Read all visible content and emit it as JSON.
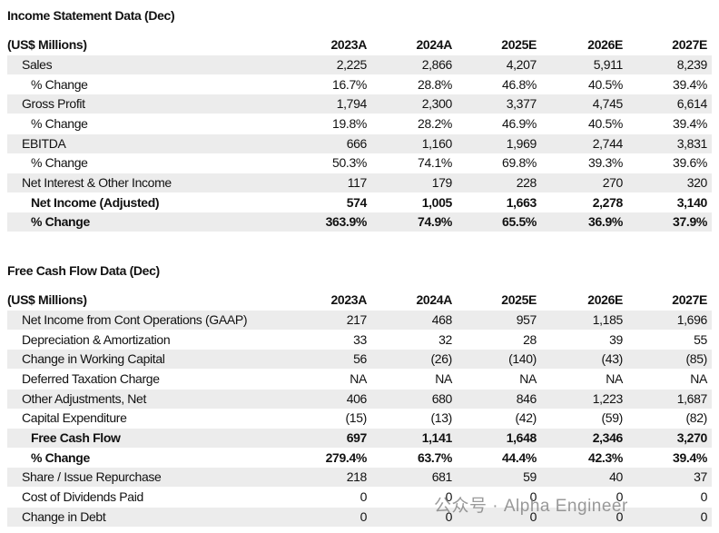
{
  "sections": [
    {
      "title": "Income Statement Data (Dec)",
      "header": {
        "label": "(US$ Millions)",
        "columns": [
          "2023A",
          "2024A",
          "2025E",
          "2026E",
          "2027E"
        ]
      },
      "rows": [
        {
          "label": "Sales",
          "values": [
            "2,225",
            "2,866",
            "4,207",
            "5,911",
            "8,239"
          ]
        },
        {
          "label": "% Change",
          "values": [
            "16.7%",
            "28.8%",
            "46.8%",
            "40.5%",
            "39.4%"
          ],
          "indent": true
        },
        {
          "label": "Gross Profit",
          "values": [
            "1,794",
            "2,300",
            "3,377",
            "4,745",
            "6,614"
          ]
        },
        {
          "label": "% Change",
          "values": [
            "19.8%",
            "28.2%",
            "46.9%",
            "40.5%",
            "39.4%"
          ],
          "indent": true
        },
        {
          "label": "EBITDA",
          "values": [
            "666",
            "1,160",
            "1,969",
            "2,744",
            "3,831"
          ]
        },
        {
          "label": "% Change",
          "values": [
            "50.3%",
            "74.1%",
            "69.8%",
            "39.3%",
            "39.6%"
          ],
          "indent": true
        },
        {
          "label": "Net Interest & Other Income",
          "values": [
            "117",
            "179",
            "228",
            "270",
            "320"
          ]
        },
        {
          "label": "Net Income (Adjusted)",
          "values": [
            "574",
            "1,005",
            "1,663",
            "2,278",
            "3,140"
          ],
          "indent": true,
          "bold": true
        },
        {
          "label": "% Change",
          "values": [
            "363.9%",
            "74.9%",
            "65.5%",
            "36.9%",
            "37.9%"
          ],
          "indent": true,
          "bold": true
        }
      ]
    },
    {
      "title": "Free Cash Flow Data (Dec)",
      "header": {
        "label": "(US$ Millions)",
        "columns": [
          "2023A",
          "2024A",
          "2025E",
          "2026E",
          "2027E"
        ]
      },
      "rows": [
        {
          "label": "Net Income from Cont Operations (GAAP)",
          "values": [
            "217",
            "468",
            "957",
            "1,185",
            "1,696"
          ]
        },
        {
          "label": "Depreciation & Amortization",
          "values": [
            "33",
            "32",
            "28",
            "39",
            "55"
          ]
        },
        {
          "label": "Change in Working Capital",
          "values": [
            "56",
            "(26)",
            "(140)",
            "(43)",
            "(85)"
          ]
        },
        {
          "label": "Deferred Taxation Charge",
          "values": [
            "NA",
            "NA",
            "NA",
            "NA",
            "NA"
          ]
        },
        {
          "label": "Other Adjustments, Net",
          "values": [
            "406",
            "680",
            "846",
            "1,223",
            "1,687"
          ]
        },
        {
          "label": "Capital Expenditure",
          "values": [
            "(15)",
            "(13)",
            "(42)",
            "(59)",
            "(82)"
          ]
        },
        {
          "label": "Free Cash Flow",
          "values": [
            "697",
            "1,141",
            "1,648",
            "2,346",
            "3,270"
          ],
          "indent": true,
          "bold": true
        },
        {
          "label": "% Change",
          "values": [
            "279.4%",
            "63.7%",
            "44.4%",
            "42.3%",
            "39.4%"
          ],
          "indent": true,
          "bold": true
        },
        {
          "label": "Share / Issue Repurchase",
          "values": [
            "218",
            "681",
            "59",
            "40",
            "37"
          ]
        },
        {
          "label": "Cost of Dividends Paid",
          "values": [
            "0",
            "0",
            "0",
            "0",
            "0"
          ]
        },
        {
          "label": "Change in Debt",
          "values": [
            "0",
            "0",
            "0",
            "0",
            "0"
          ]
        }
      ]
    }
  ],
  "watermark": "公众号 · Alpha Engineer"
}
